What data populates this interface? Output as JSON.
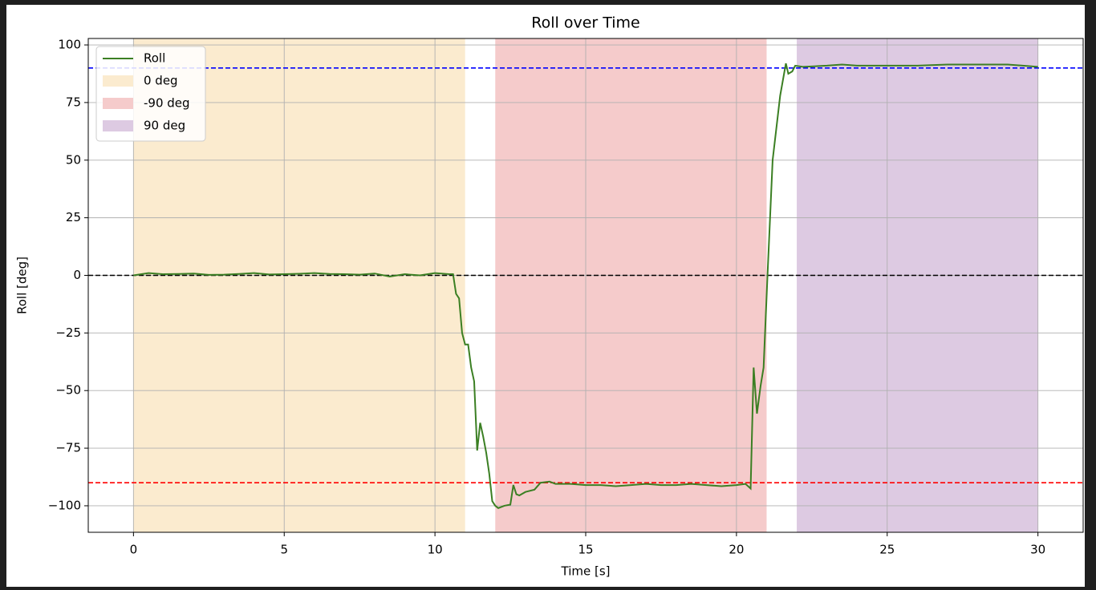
{
  "chart_data": {
    "type": "line",
    "title": "Roll over Time",
    "x_label": "Time [s]",
    "y_label": "Roll [deg]",
    "x": [
      0,
      0.5,
      1,
      1.5,
      2,
      2.5,
      3,
      3.5,
      4,
      4.5,
      5,
      5.5,
      6,
      6.5,
      7,
      7.5,
      8,
      8.5,
      9,
      9.5,
      10,
      10.5,
      10.6,
      10.7,
      10.8,
      10.9,
      11.0,
      11.1,
      11.2,
      11.3,
      11.4,
      11.5,
      11.6,
      11.7,
      11.8,
      11.9,
      12.0,
      12.1,
      12.3,
      12.5,
      12.6,
      12.7,
      12.8,
      13.0,
      13.3,
      13.5,
      13.8,
      14.0,
      14.5,
      15,
      15.5,
      16,
      16.5,
      17,
      17.5,
      18,
      18.5,
      19,
      19.5,
      20,
      20.3,
      20.47,
      20.57,
      20.68,
      20.8,
      20.9,
      21.03,
      21.2,
      21.45,
      21.64,
      21.72,
      21.85,
      21.95,
      22.2,
      23,
      23.5,
      24,
      25,
      26,
      27,
      28,
      29,
      30
    ],
    "series": [
      {
        "name": "Roll",
        "color": "#3b7f23",
        "values": [
          0,
          1,
          0.5,
          0.6,
          0.8,
          0.2,
          0.3,
          0.6,
          1,
          0.4,
          0.5,
          0.7,
          1,
          0.6,
          0.5,
          0.3,
          0.8,
          -0.5,
          0.5,
          0,
          1,
          0.5,
          0.5,
          -8,
          -10,
          -25,
          -30,
          -30,
          -40,
          -46,
          -76,
          -64,
          -70,
          -77,
          -86,
          -98,
          -100,
          -101,
          -100,
          -99.5,
          -91,
          -95,
          -95.5,
          -94,
          -93,
          -90,
          -89.5,
          -90.5,
          -90.5,
          -91,
          -91,
          -91.5,
          -91,
          -90.5,
          -91,
          -91,
          -90.5,
          -91,
          -91.5,
          -91,
          -90.5,
          -92.5,
          -40,
          -60,
          -48,
          -40,
          0,
          50,
          78,
          92,
          87.5,
          88.5,
          91,
          90.5,
          91,
          91.5,
          91,
          91,
          91,
          91.5,
          91.5,
          91.5,
          90.5
        ]
      }
    ],
    "spans": [
      {
        "name": "0 deg",
        "color": "#fbebcf",
        "start": 0,
        "end": 11
      },
      {
        "name": "-90 deg",
        "color": "#f5cbcb",
        "start": 12,
        "end": 21
      },
      {
        "name": "90 deg",
        "color": "#ddcae2",
        "start": 22,
        "end": 30
      }
    ],
    "reference_lines": [
      {
        "value": 90,
        "color": "#0000ff"
      },
      {
        "value": 0,
        "color": "#000000"
      },
      {
        "value": -90,
        "color": "#ff0000"
      }
    ],
    "xlim": [
      -1.5,
      31.5
    ],
    "ylim": [
      -111.5,
      102.8
    ],
    "xticks": [
      0,
      5,
      10,
      15,
      20,
      25,
      30
    ],
    "yticks": [
      {
        "value": -100,
        "label": "−100"
      },
      {
        "value": -75,
        "label": "−75"
      },
      {
        "value": -50,
        "label": "−50"
      },
      {
        "value": -25,
        "label": "−25"
      },
      0,
      25,
      50,
      75,
      100
    ],
    "grid": true,
    "legend_position": "upper-left"
  }
}
